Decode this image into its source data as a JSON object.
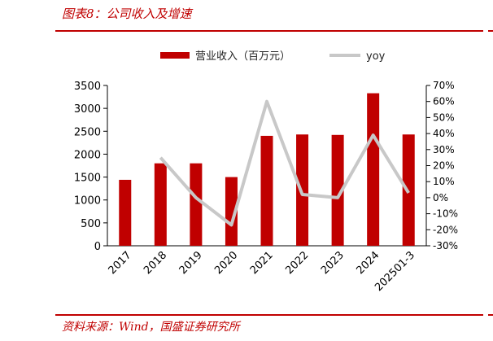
{
  "header": {
    "title": "图表8：公司收入及增速"
  },
  "footer": {
    "source": "资料来源：Wind，国盛证券研究所"
  },
  "colors": {
    "bar": "#c00000",
    "line": "#c8c8c8",
    "accent": "#c00000"
  },
  "chart_data": {
    "type": "bar",
    "title": "",
    "categories": [
      "2017",
      "2018",
      "2019",
      "2020",
      "2021",
      "2022",
      "2023",
      "2024",
      "202501-3"
    ],
    "series": [
      {
        "name": "营业收入（百万元）",
        "type": "bar",
        "axis": "left",
        "values": [
          1440,
          1800,
          1800,
          1500,
          2400,
          2430,
          2420,
          3330,
          2430
        ]
      },
      {
        "name": "yoy",
        "type": "line",
        "axis": "right",
        "values": [
          null,
          25,
          0,
          -17,
          60,
          2,
          0,
          39,
          3
        ]
      }
    ],
    "y_left": {
      "ticks": [
        "0",
        "500",
        "1000",
        "1500",
        "2000",
        "2500",
        "3000",
        "3500"
      ],
      "min": 0,
      "max": 3500
    },
    "y_right": {
      "ticks": [
        "-30%",
        "-20%",
        "-10%",
        "0%",
        "10%",
        "20%",
        "30%",
        "40%",
        "50%",
        "60%",
        "70%"
      ],
      "min": -30,
      "max": 70
    },
    "legend": "top-center",
    "grid": false
  }
}
